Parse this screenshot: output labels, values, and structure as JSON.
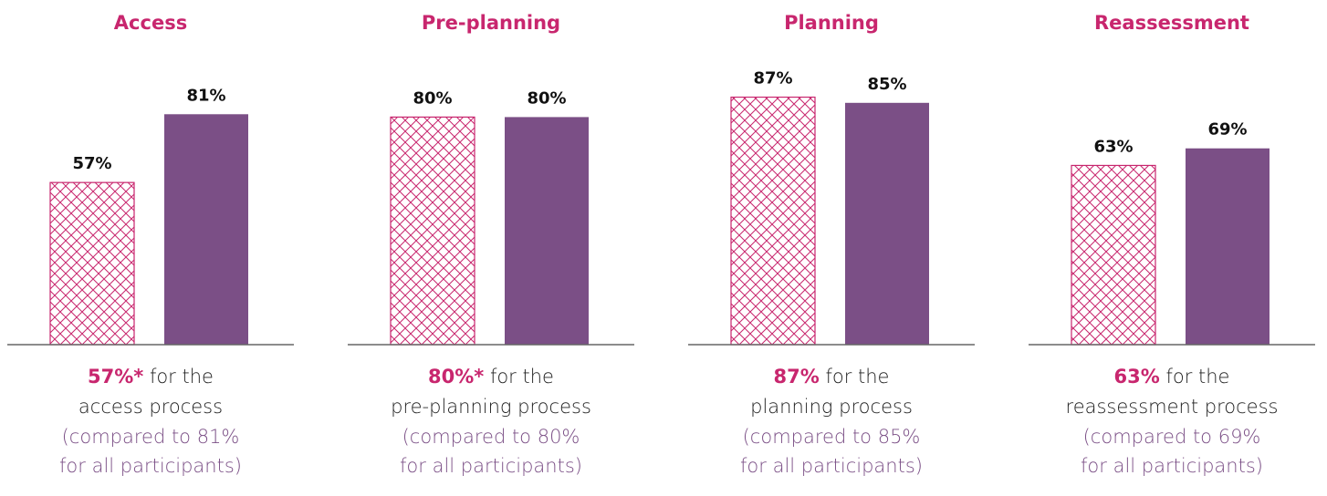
{
  "chart_data": [
    {
      "type": "bar",
      "title": "Access",
      "categories": [
        null,
        null
      ],
      "values": [
        57,
        81
      ],
      "value_labels": [
        "57%",
        "81%"
      ],
      "colors": [
        "#c8266e",
        "#7b4f86"
      ],
      "styles": [
        "hatch",
        "solid"
      ],
      "caption": {
        "lead": "57%*",
        "lead_rest": " for the",
        "process": "access process",
        "comparison": [
          "(compared to 81%",
          "for all participants)"
        ]
      }
    },
    {
      "type": "bar",
      "title": "Pre-planning",
      "categories": [
        null,
        null
      ],
      "values": [
        80,
        80
      ],
      "value_labels": [
        "80%",
        "80%"
      ],
      "colors": [
        "#c8266e",
        "#7b4f86"
      ],
      "styles": [
        "hatch",
        "solid"
      ],
      "caption": {
        "lead": "80%*",
        "lead_rest": " for the",
        "process": "pre-planning process",
        "comparison": [
          "(compared to 80%",
          "for all participants)"
        ]
      }
    },
    {
      "type": "bar",
      "title": "Planning",
      "categories": [
        null,
        null
      ],
      "values": [
        87,
        85
      ],
      "value_labels": [
        "87%",
        "85%"
      ],
      "colors": [
        "#c8266e",
        "#7b4f86"
      ],
      "styles": [
        "hatch",
        "solid"
      ],
      "caption": {
        "lead": "87%",
        "lead_rest": " for the",
        "process": "planning process",
        "comparison": [
          "(compared to 85%",
          "for all participants)"
        ]
      }
    },
    {
      "type": "bar",
      "title": "Reassessment",
      "categories": [
        null,
        null
      ],
      "values": [
        63,
        69
      ],
      "value_labels": [
        "63%",
        "69%"
      ],
      "colors": [
        "#c8266e",
        "#7b4f86"
      ],
      "styles": [
        "hatch",
        "solid"
      ],
      "caption": {
        "lead": "63%",
        "lead_rest": " for the",
        "process": "reassessment process",
        "comparison": [
          "(compared to 69%",
          "for all participants)"
        ]
      }
    }
  ]
}
